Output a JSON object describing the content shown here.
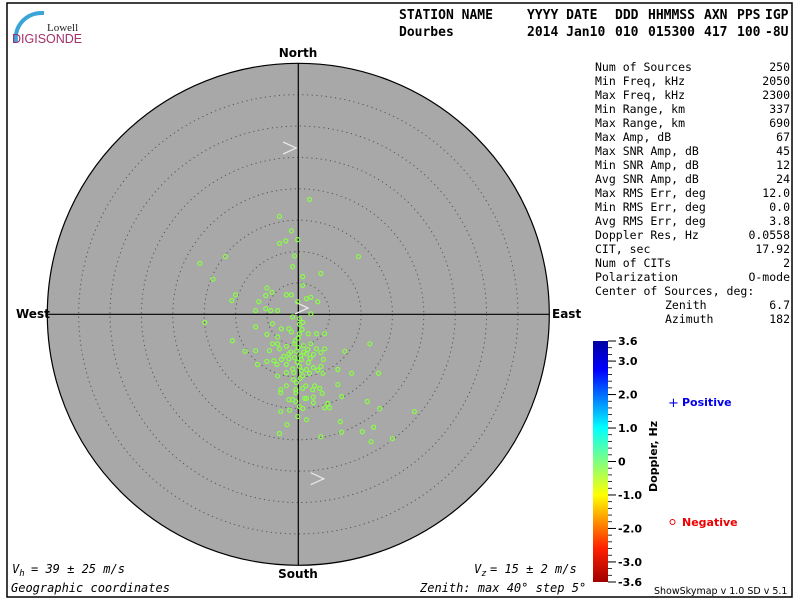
{
  "logo": {
    "line1": "Lowell",
    "line2": "DIGISONDE"
  },
  "header": {
    "labels": [
      "STATION NAME",
      "YYYY DATE",
      "DDD",
      "HHMMSS",
      "AXN",
      "PPS",
      "IGP"
    ],
    "values": [
      "Dourbes",
      "2014 Jan10",
      "010",
      "015300",
      "417",
      "100",
      "-8U"
    ]
  },
  "stats": [
    {
      "label": "Num of Sources",
      "value": "250"
    },
    {
      "label": "Min Freq, kHz",
      "value": "2050"
    },
    {
      "label": "Max Freq, kHz",
      "value": "2300"
    },
    {
      "label": "Min Range, km",
      "value": "337"
    },
    {
      "label": "Max Range, km",
      "value": "690"
    },
    {
      "label": "Max Amp, dB",
      "value": "67"
    },
    {
      "label": "Max SNR Amp, dB",
      "value": "45"
    },
    {
      "label": "Min SNR Amp, dB",
      "value": "12"
    },
    {
      "label": "Avg SNR Amp, dB",
      "value": "24"
    },
    {
      "label": "Max RMS Err, deg",
      "value": "12.0"
    },
    {
      "label": "Min RMS Err, deg",
      "value": "0.0"
    },
    {
      "label": "Avg RMS Err, deg",
      "value": "3.8"
    },
    {
      "label": "Doppler Res, Hz",
      "value": "0.0558"
    },
    {
      "label": "CIT, sec",
      "value": "17.92"
    },
    {
      "label": "Num of CITs",
      "value": "2"
    },
    {
      "label": "Polarization",
      "value": "O-mode"
    }
  ],
  "center": {
    "title": "Center of Sources, deg:",
    "zenith_label": "Zenith",
    "zenith": "6.7",
    "azimuth_label": "Azimuth",
    "azimuth": "182"
  },
  "colorbar": {
    "title": "Doppler, Hz",
    "range": [
      -3.6,
      3.6
    ],
    "ticks": [
      "3.6",
      "3.0",
      "2.0",
      "1.0",
      "0",
      "-1.0",
      "-2.0",
      "-3.0",
      "-3.6"
    ],
    "tick_values": [
      3.6,
      3.0,
      2.0,
      1.0,
      0,
      -1.0,
      -2.0,
      -3.0,
      -3.6
    ]
  },
  "legend": {
    "positive": "Positive",
    "negative": "Negative",
    "positive_symbol": "+",
    "negative_symbol": "o",
    "positive_color": "#0000ee",
    "negative_color": "#ee0000"
  },
  "footer": {
    "vh": "= 39 ± 25 m/s",
    "vh_symbol": "V",
    "vh_sub": "h",
    "vz": "= 15 ± 2 m/s",
    "vz_symbol": "V",
    "vz_sub": "z",
    "coords": "Geographic coordinates",
    "zenith_info": "Zenith: max 40°  step 5°",
    "version": "ShowSkymap v 1.0   SD v 5.1"
  },
  "chart_data": {
    "type": "scatter",
    "projection": "polar sky map (zenith angle / azimuth)",
    "directions": {
      "north": "North",
      "south": "South",
      "east": "East",
      "west": "West"
    },
    "zenith_max": 40,
    "zenith_step": 5,
    "point_color": "#88ff44",
    "background": "#a8a8a8",
    "points_east_north_deg": [
      [
        1.8,
        18.3
      ],
      [
        -3.0,
        15.6
      ],
      [
        -1.1,
        13.3
      ],
      [
        -3.0,
        11.3
      ],
      [
        -2.0,
        11.7
      ],
      [
        -0.1,
        11.9
      ],
      [
        -11.6,
        9.2
      ],
      [
        -15.7,
        8.1
      ],
      [
        9.6,
        9.2
      ],
      [
        -13.6,
        5.6
      ],
      [
        -0.6,
        9.3
      ],
      [
        -0.9,
        7.6
      ],
      [
        3.6,
        6.5
      ],
      [
        0.7,
        6.0
      ],
      [
        0.7,
        4.6
      ],
      [
        -5.0,
        4.2
      ],
      [
        -10.0,
        3.1
      ],
      [
        -5.2,
        3.0
      ],
      [
        -4.2,
        3.5
      ],
      [
        -1.9,
        3.1
      ],
      [
        -1.1,
        3.1
      ],
      [
        -10.6,
        2.2
      ],
      [
        -6.3,
        2.0
      ],
      [
        -0.1,
        2.0
      ],
      [
        1.3,
        2.5
      ],
      [
        2.0,
        2.7
      ],
      [
        3.1,
        2.0
      ],
      [
        -6.8,
        0.6
      ],
      [
        -5.2,
        0.9
      ],
      [
        -4.4,
        0.6
      ],
      [
        -3.3,
        0.6
      ],
      [
        2.0,
        0.1
      ],
      [
        -14.9,
        -1.3
      ],
      [
        -0.9,
        -0.4
      ],
      [
        0.2,
        -0.7
      ],
      [
        -4.1,
        -1.5
      ],
      [
        -6.8,
        -2.0
      ],
      [
        -2.7,
        -2.3
      ],
      [
        0.2,
        -1.6
      ],
      [
        0.7,
        -1.3
      ],
      [
        -5.0,
        -3.2
      ],
      [
        -3.3,
        -3.6
      ],
      [
        -10.5,
        -4.2
      ],
      [
        -1.5,
        -2.3
      ],
      [
        -1.1,
        -2.8
      ],
      [
        0.2,
        -3.1
      ],
      [
        1.6,
        -3.1
      ],
      [
        2.9,
        -3.1
      ],
      [
        4.2,
        -3.1
      ],
      [
        11.4,
        -4.7
      ],
      [
        -8.5,
        -5.9
      ],
      [
        -6.8,
        -5.8
      ],
      [
        7.4,
        -5.9
      ],
      [
        -4.1,
        -4.7
      ],
      [
        -3.3,
        -4.7
      ],
      [
        -1.9,
        -5.1
      ],
      [
        -0.6,
        -4.7
      ],
      [
        0.8,
        -5.0
      ],
      [
        2.0,
        -4.7
      ],
      [
        2.9,
        -5.5
      ],
      [
        4.2,
        -5.5
      ],
      [
        -4.6,
        -5.8
      ],
      [
        -3.0,
        -5.5
      ],
      [
        -1.5,
        -6.3
      ],
      [
        -0.3,
        -5.9
      ],
      [
        1.3,
        -6.3
      ],
      [
        2.4,
        -6.4
      ],
      [
        3.6,
        -6.1
      ],
      [
        -6.5,
        -8.0
      ],
      [
        -5.0,
        -7.5
      ],
      [
        -3.9,
        -7.4
      ],
      [
        -2.7,
        -7.2
      ],
      [
        -1.5,
        -7.1
      ],
      [
        -0.6,
        -6.9
      ],
      [
        0.5,
        -7.2
      ],
      [
        1.6,
        -7.7
      ],
      [
        4.0,
        -7.2
      ],
      [
        -3.4,
        -8.0
      ],
      [
        -1.9,
        -8.0
      ],
      [
        -0.9,
        -8.7
      ],
      [
        0.2,
        -8.3
      ],
      [
        1.3,
        -8.8
      ],
      [
        2.4,
        -8.5
      ],
      [
        3.6,
        -8.3
      ],
      [
        6.3,
        -8.8
      ],
      [
        8.5,
        -9.4
      ],
      [
        12.8,
        -9.4
      ],
      [
        -3.3,
        -9.8
      ],
      [
        -1.9,
        -9.3
      ],
      [
        -0.7,
        -9.3
      ],
      [
        0.7,
        -9.8
      ],
      [
        1.8,
        -9.4
      ],
      [
        3.1,
        -8.9
      ],
      [
        3.9,
        -9.4
      ],
      [
        -1.9,
        -11.4
      ],
      [
        -0.3,
        -10.9
      ],
      [
        1.2,
        -11.4
      ],
      [
        2.6,
        -11.4
      ],
      [
        6.3,
        -11.2
      ],
      [
        -2.8,
        -12.0
      ],
      [
        -2.8,
        -12.5
      ],
      [
        -0.4,
        -12.0
      ],
      [
        0.7,
        -11.8
      ],
      [
        2.3,
        -12.0
      ],
      [
        3.4,
        -11.8
      ],
      [
        -0.4,
        -12.5
      ],
      [
        3.8,
        -12.6
      ],
      [
        6.9,
        -13.1
      ],
      [
        2.4,
        -13.2
      ],
      [
        1.0,
        -13.4
      ],
      [
        -1.5,
        -13.6
      ],
      [
        -0.9,
        -13.6
      ],
      [
        -0.4,
        -13.9
      ],
      [
        1.3,
        -13.4
      ],
      [
        2.4,
        -14.1
      ],
      [
        11.0,
        -13.9
      ],
      [
        4.7,
        -14.2
      ],
      [
        4.2,
        -14.9
      ],
      [
        5.0,
        -14.9
      ],
      [
        0.7,
        -15.0
      ],
      [
        0.2,
        -14.7
      ],
      [
        13.0,
        -15.0
      ],
      [
        -2.8,
        -15.5
      ],
      [
        -1.4,
        -15.3
      ],
      [
        -0.1,
        -16.3
      ],
      [
        1.3,
        -16.8
      ],
      [
        18.5,
        -15.5
      ],
      [
        -1.8,
        -17.6
      ],
      [
        6.7,
        -17.1
      ],
      [
        -3.0,
        -19.0
      ],
      [
        3.6,
        -19.5
      ],
      [
        6.9,
        -18.8
      ],
      [
        10.2,
        -18.7
      ],
      [
        12.0,
        -18.0
      ],
      [
        15.0,
        -19.8
      ],
      [
        11.6,
        -20.3
      ],
      [
        0.0,
        -5.3
      ],
      [
        0.4,
        -6.6
      ],
      [
        -0.2,
        -7.6
      ],
      [
        0.9,
        -6.0
      ],
      [
        -0.5,
        -4.2
      ],
      [
        0.5,
        -9.0
      ],
      [
        1.5,
        -5.6
      ],
      [
        -1.2,
        -6.0
      ],
      [
        0.3,
        -10.2
      ],
      [
        -0.8,
        -10.4
      ],
      [
        1.9,
        -7.0
      ],
      [
        -2.3,
        -6.7
      ],
      [
        0.0,
        -3.8
      ],
      [
        0.6,
        -2.4
      ]
    ],
    "velocity_markers_east_north_deg": [
      [
        -1.3,
        26.5
      ],
      [
        3.1,
        -26.2
      ],
      [
        0.6,
        1.0
      ]
    ]
  }
}
